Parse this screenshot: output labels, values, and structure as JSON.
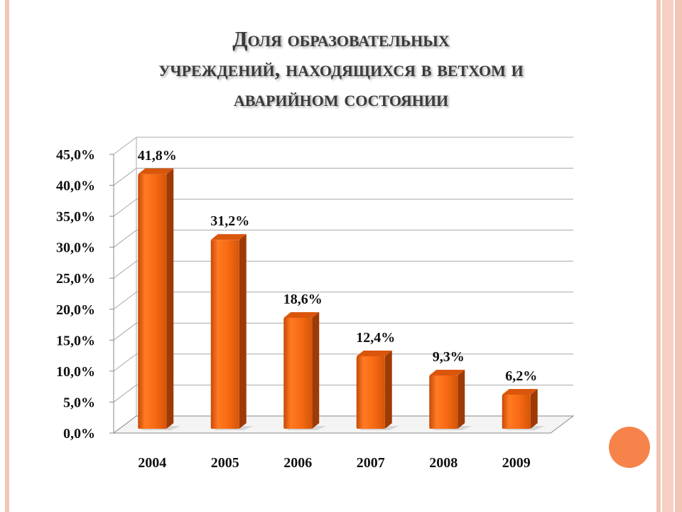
{
  "slide": {
    "title_lines": [
      "Доля образовательных",
      "учреждений, находящихся в ветхом и",
      "аварийном состоянии"
    ],
    "colors": {
      "bar_front": "#f86a14",
      "bar_side": "#9e3a06",
      "bar_top": "#d9560c",
      "frame": "#f2c5b5",
      "accent": "#f6834a"
    }
  },
  "chart_data": {
    "type": "bar",
    "categories": [
      "2004",
      "2005",
      "2006",
      "2007",
      "2008",
      "2009"
    ],
    "values": [
      41.8,
      31.2,
      18.6,
      12.4,
      9.3,
      6.2
    ],
    "data_labels": [
      "41,8%",
      "31,2%",
      "18,6%",
      "12,4%",
      "9,3%",
      "6,2%"
    ],
    "yticks": [
      "0,0%",
      "5,0%",
      "10,0%",
      "15,0%",
      "20,0%",
      "25,0%",
      "30,0%",
      "35,0%",
      "40,0%",
      "45,0%"
    ],
    "ylim": [
      0,
      45
    ],
    "grid": true,
    "style": "3d"
  }
}
